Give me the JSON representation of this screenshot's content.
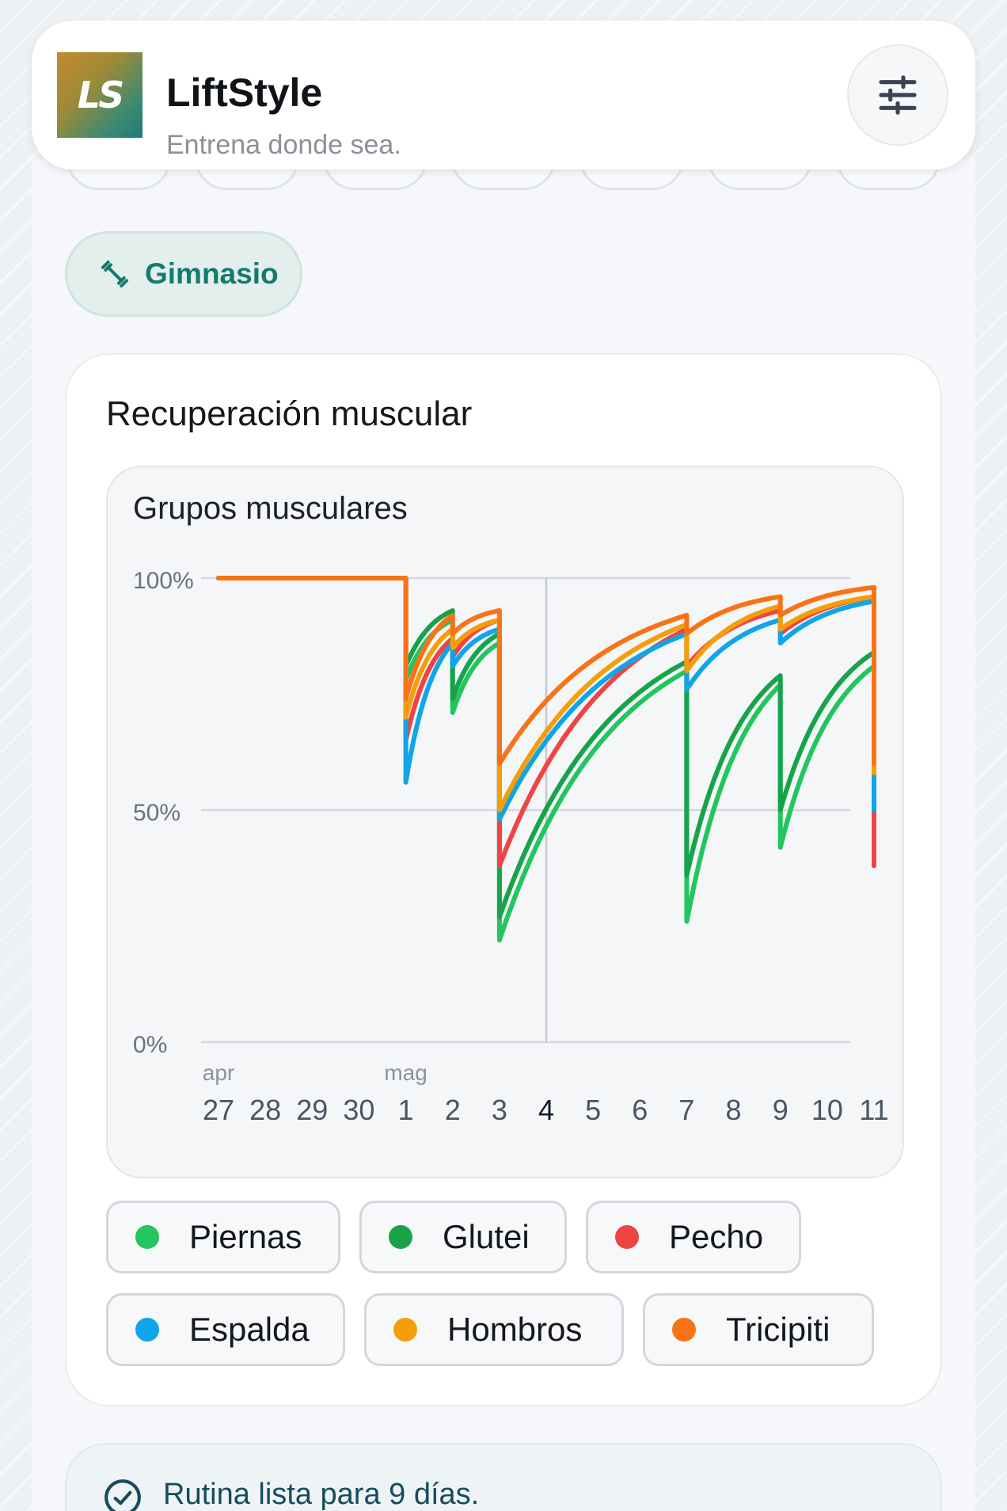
{
  "header": {
    "logo_text": "LS",
    "app_name": "LiftStyle",
    "tagline": "Entrena donde sea."
  },
  "icons": {
    "settings": "sliders-icon",
    "gym": "dumbbell-icon",
    "routine_status": "check-circle-icon"
  },
  "filter_chip": {
    "label": "Gimnasio"
  },
  "recovery": {
    "title": "Recuperación muscular",
    "chart_title": "Grupos musculares"
  },
  "legend": [
    {
      "label": "Piernas",
      "color": "#22c55e"
    },
    {
      "label": "Glutei",
      "color": "#16a34a"
    },
    {
      "label": "Pecho",
      "color": "#ef4444"
    },
    {
      "label": "Espalda",
      "color": "#0ea5e9"
    },
    {
      "label": "Hombros",
      "color": "#f59e0b"
    },
    {
      "label": "Tricipiti",
      "color": "#f97316"
    }
  ],
  "routine": {
    "status_text": "Rutina lista para 9 días."
  },
  "chart_data": {
    "type": "line",
    "title": "Grupos musculares",
    "ylim": [
      0,
      100
    ],
    "y_ticks": [
      "0%",
      "50%",
      "100%"
    ],
    "x_ticks": [
      "27",
      "28",
      "29",
      "30",
      "1",
      "2",
      "3",
      "4",
      "5",
      "6",
      "7",
      "8",
      "9",
      "10",
      "11"
    ],
    "x_month_labels": [
      {
        "at": "27",
        "label": "apr"
      },
      {
        "at": "1",
        "label": "mag"
      }
    ],
    "highlighted_x": "4",
    "grid": true,
    "series": [
      {
        "name": "Piernas",
        "color": "#22c55e",
        "values": [
          [
            0,
            100
          ],
          [
            4,
            100
          ],
          [
            4,
            78
          ],
          [
            5,
            91
          ],
          [
            5,
            71
          ],
          [
            6,
            86
          ],
          [
            6,
            22
          ],
          [
            10,
            80
          ],
          [
            10,
            26
          ],
          [
            12,
            77
          ],
          [
            12,
            42
          ],
          [
            14,
            81
          ]
        ]
      },
      {
        "name": "Glutei",
        "color": "#16a34a",
        "values": [
          [
            0,
            100
          ],
          [
            4,
            100
          ],
          [
            4,
            81
          ],
          [
            5,
            93
          ],
          [
            5,
            74
          ],
          [
            6,
            88
          ],
          [
            6,
            27
          ],
          [
            10,
            82
          ],
          [
            10,
            36
          ],
          [
            12,
            79
          ],
          [
            12,
            50
          ],
          [
            14,
            84
          ]
        ]
      },
      {
        "name": "Pecho",
        "color": "#ef4444",
        "values": [
          [
            0,
            100
          ],
          [
            4,
            100
          ],
          [
            4,
            65
          ],
          [
            5,
            87
          ],
          [
            5,
            83
          ],
          [
            6,
            91
          ],
          [
            6,
            38
          ],
          [
            10,
            89
          ],
          [
            10,
            81
          ],
          [
            12,
            93
          ],
          [
            12,
            88
          ],
          [
            14,
            96
          ],
          [
            14,
            38
          ]
        ]
      },
      {
        "name": "Espalda",
        "color": "#0ea5e9",
        "values": [
          [
            0,
            100
          ],
          [
            4,
            100
          ],
          [
            4,
            56
          ],
          [
            5,
            86
          ],
          [
            5,
            81
          ],
          [
            6,
            89
          ],
          [
            6,
            48
          ],
          [
            10,
            88
          ],
          [
            10,
            76
          ],
          [
            12,
            91
          ],
          [
            12,
            86
          ],
          [
            14,
            95
          ],
          [
            14,
            50
          ]
        ]
      },
      {
        "name": "Hombros",
        "color": "#f59e0b",
        "values": [
          [
            0,
            100
          ],
          [
            4,
            100
          ],
          [
            4,
            70
          ],
          [
            5,
            89
          ],
          [
            5,
            85
          ],
          [
            6,
            91
          ],
          [
            6,
            50
          ],
          [
            10,
            90
          ],
          [
            10,
            80
          ],
          [
            12,
            94
          ],
          [
            12,
            89
          ],
          [
            14,
            96
          ],
          [
            14,
            58
          ]
        ]
      },
      {
        "name": "Tricipiti",
        "color": "#f97316",
        "values": [
          [
            0,
            100
          ],
          [
            4,
            100
          ],
          [
            4,
            74
          ],
          [
            5,
            92
          ],
          [
            5,
            88
          ],
          [
            6,
            93
          ],
          [
            6,
            60
          ],
          [
            10,
            92
          ],
          [
            10,
            88
          ],
          [
            12,
            96
          ],
          [
            12,
            92
          ],
          [
            14,
            98
          ],
          [
            14,
            60
          ]
        ]
      }
    ]
  }
}
